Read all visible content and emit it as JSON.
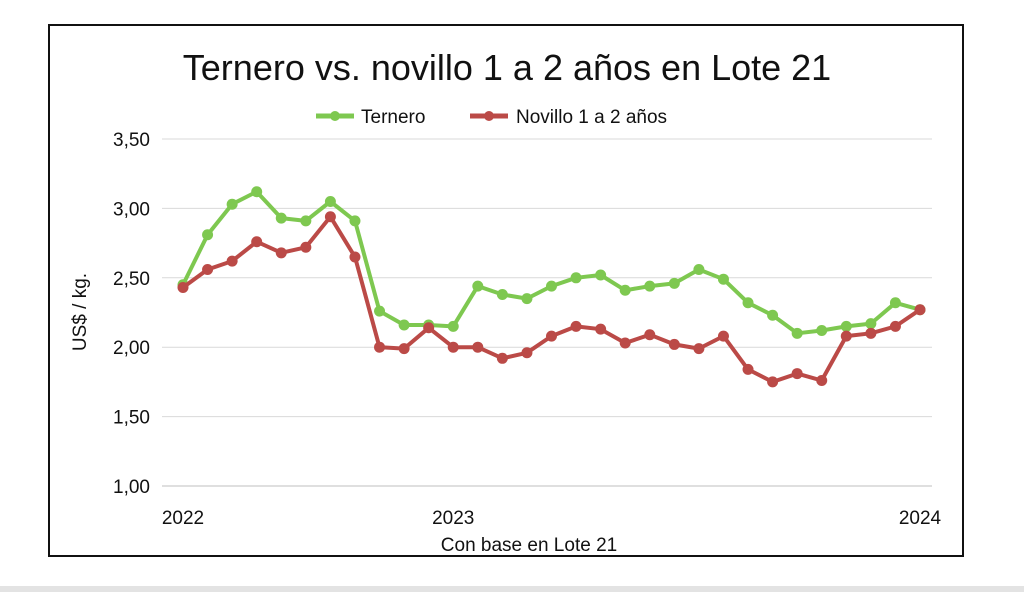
{
  "chart_data": {
    "type": "line",
    "title": "Ternero vs. novillo 1 a 2 años en Lote 21",
    "xlabel": "Con base en Lote 21",
    "ylabel": "US$ / kg.",
    "ylim": [
      1.0,
      3.5
    ],
    "yticks": [
      "1,00",
      "1,50",
      "2,00",
      "2,50",
      "3,00",
      "3,50"
    ],
    "yticks_values": [
      1.0,
      1.5,
      2.0,
      2.5,
      3.0,
      3.5
    ],
    "xticks": [
      {
        "label": "2022",
        "index": 0
      },
      {
        "label": "2023",
        "index": 11
      },
      {
        "label": "2024",
        "index": 30
      }
    ],
    "legend_position": "top-center",
    "series": [
      {
        "name": "Ternero",
        "color": "#7ec850",
        "values": [
          2.45,
          2.81,
          3.03,
          3.12,
          2.93,
          2.91,
          3.05,
          2.91,
          2.26,
          2.16,
          2.16,
          2.15,
          2.44,
          2.38,
          2.35,
          2.44,
          2.5,
          2.52,
          2.41,
          2.44,
          2.46,
          2.56,
          2.49,
          2.32,
          2.23,
          2.1,
          2.12,
          2.15,
          2.17,
          2.32,
          2.27
        ]
      },
      {
        "name": "Novillo 1 a 2 años",
        "color": "#bb4a47",
        "values": [
          2.43,
          2.56,
          2.62,
          2.76,
          2.68,
          2.72,
          2.94,
          2.65,
          2.0,
          1.99,
          2.14,
          2.0,
          2.0,
          1.92,
          1.96,
          2.08,
          2.15,
          2.13,
          2.03,
          2.09,
          2.02,
          1.99,
          2.08,
          1.84,
          1.75,
          1.81,
          1.76,
          2.08,
          2.1,
          2.15,
          2.27
        ]
      }
    ]
  }
}
